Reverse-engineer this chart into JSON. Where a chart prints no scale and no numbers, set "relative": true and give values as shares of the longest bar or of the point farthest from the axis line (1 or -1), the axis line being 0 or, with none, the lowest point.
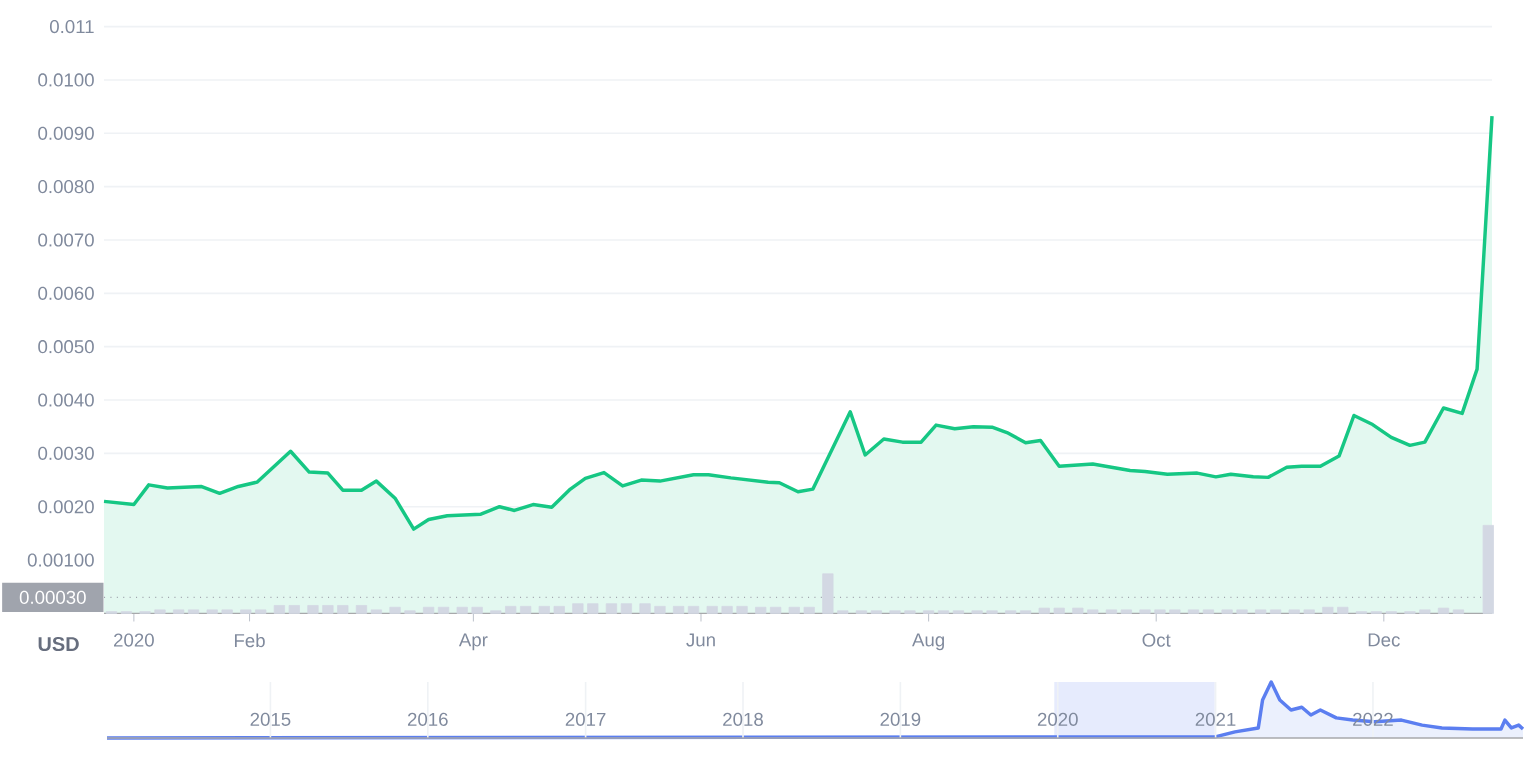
{
  "chart_data": [
    {
      "type": "area",
      "color": "#16c784",
      "grid": "y",
      "x": [
        "2019-12-24",
        "2020-01-01",
        "2020-01-05",
        "2020-01-10",
        "2020-01-19",
        "2020-01-24",
        "2020-01-29",
        "2020-02-03",
        "2020-02-12",
        "2020-02-17",
        "2020-02-22",
        "2020-02-26",
        "2020-03-02",
        "2020-03-06",
        "2020-03-11",
        "2020-03-16",
        "2020-03-20",
        "2020-03-25",
        "2020-04-03",
        "2020-04-08",
        "2020-04-12",
        "2020-04-17",
        "2020-04-22",
        "2020-04-27",
        "2020-05-01",
        "2020-05-06",
        "2020-05-11",
        "2020-05-16",
        "2020-05-21",
        "2020-05-30",
        "2020-06-03",
        "2020-06-09",
        "2020-06-19",
        "2020-06-22",
        "2020-06-27",
        "2020-07-01",
        "2020-07-11",
        "2020-07-15",
        "2020-07-20",
        "2020-07-25",
        "2020-07-30",
        "2020-08-03",
        "2020-08-08",
        "2020-08-13",
        "2020-08-18",
        "2020-08-22",
        "2020-08-27",
        "2020-08-31",
        "2020-09-05",
        "2020-09-14",
        "2020-09-19",
        "2020-09-24",
        "2020-09-28",
        "2020-10-04",
        "2020-10-12",
        "2020-10-17",
        "2020-10-21",
        "2020-10-27",
        "2020-10-31",
        "2020-11-05",
        "2020-11-09",
        "2020-11-14",
        "2020-11-19",
        "2020-11-23",
        "2020-11-28",
        "2020-12-03",
        "2020-12-08",
        "2020-12-12",
        "2020-12-17",
        "2020-12-22",
        "2020-12-26",
        "2020-12-30"
      ],
      "values": [
        0.0021,
        0.00204,
        0.00241,
        0.00235,
        0.00238,
        0.00225,
        0.00238,
        0.00246,
        0.00304,
        0.00265,
        0.00263,
        0.00231,
        0.00231,
        0.00248,
        0.00216,
        0.00158,
        0.00176,
        0.00183,
        0.00186,
        0.002,
        0.00193,
        0.00204,
        0.00199,
        0.00233,
        0.00253,
        0.00264,
        0.00239,
        0.0025,
        0.00248,
        0.0026,
        0.0026,
        0.00254,
        0.00246,
        0.00245,
        0.00228,
        0.00233,
        0.00378,
        0.00297,
        0.00327,
        0.00321,
        0.00321,
        0.00353,
        0.00346,
        0.0035,
        0.00349,
        0.00339,
        0.0032,
        0.00324,
        0.00276,
        0.0028,
        0.00274,
        0.00268,
        0.00266,
        0.00261,
        0.00263,
        0.00256,
        0.00261,
        0.00256,
        0.00255,
        0.00274,
        0.00276,
        0.00276,
        0.00295,
        0.00371,
        0.00354,
        0.0033,
        0.00315,
        0.00321,
        0.00385,
        0.00375,
        0.00458,
        0.00932
      ],
      "xlim": [
        "2019-12-24",
        "2020-12-30"
      ],
      "ylim": [
        0,
        0.011
      ],
      "xticks": [
        {
          "value": "2020-01-01",
          "label": "2020"
        },
        {
          "value": "2020-02-01",
          "label": "Feb"
        },
        {
          "value": "2020-04-01",
          "label": "Apr"
        },
        {
          "value": "2020-06-01",
          "label": "Jun"
        },
        {
          "value": "2020-08-01",
          "label": "Aug"
        },
        {
          "value": "2020-10-01",
          "label": "Oct"
        },
        {
          "value": "2020-12-01",
          "label": "Dec"
        }
      ],
      "yticks": [
        {
          "value": 0.001,
          "label": "0.00100"
        },
        {
          "value": 0.002,
          "label": "0.0020"
        },
        {
          "value": 0.003,
          "label": "0.0030"
        },
        {
          "value": 0.004,
          "label": "0.0040"
        },
        {
          "value": 0.005,
          "label": "0.0050"
        },
        {
          "value": 0.006,
          "label": "0.0060"
        },
        {
          "value": 0.007,
          "label": "0.0070"
        },
        {
          "value": 0.008,
          "label": "0.0080"
        },
        {
          "value": 0.009,
          "label": "0.0090"
        },
        {
          "value": 0.01,
          "label": "0.0100"
        },
        0.011
      ],
      "ref_lines": [
        {
          "axis": "y",
          "value": 0.0003,
          "label": "0.00030",
          "color": "#a0a4ad",
          "line_style": "dotted"
        }
      ],
      "annotations": [
        "USD"
      ]
    },
    {
      "type": "bar",
      "color": "#d3d8e3",
      "relative": true,
      "tick_labels": false,
      "x": [
        "2019-12-26",
        "2019-12-30",
        "2020-01-04",
        "2020-01-08",
        "2020-01-13",
        "2020-01-17",
        "2020-01-22",
        "2020-01-26",
        "2020-01-31",
        "2020-02-04",
        "2020-02-09",
        "2020-02-13",
        "2020-02-18",
        "2020-02-22",
        "2020-02-26",
        "2020-03-02",
        "2020-03-06",
        "2020-03-11",
        "2020-03-15",
        "2020-03-20",
        "2020-03-24",
        "2020-03-29",
        "2020-04-02",
        "2020-04-07",
        "2020-04-11",
        "2020-04-15",
        "2020-04-20",
        "2020-04-24",
        "2020-04-29",
        "2020-05-03",
        "2020-05-08",
        "2020-05-12",
        "2020-05-17",
        "2020-05-21",
        "2020-05-26",
        "2020-05-30",
        "2020-06-04",
        "2020-06-08",
        "2020-06-12",
        "2020-06-17",
        "2020-06-21",
        "2020-06-26",
        "2020-06-30",
        "2020-07-05",
        "2020-07-09",
        "2020-07-14",
        "2020-07-18",
        "2020-07-23",
        "2020-07-27",
        "2020-08-01",
        "2020-08-05",
        "2020-08-09",
        "2020-08-14",
        "2020-08-18",
        "2020-08-23",
        "2020-08-27",
        "2020-09-01",
        "2020-09-05",
        "2020-09-10",
        "2020-09-14",
        "2020-09-19",
        "2020-09-23",
        "2020-09-28",
        "2020-10-02",
        "2020-10-06",
        "2020-10-11",
        "2020-10-15",
        "2020-10-20",
        "2020-10-24",
        "2020-10-29",
        "2020-11-02",
        "2020-11-07",
        "2020-11-11",
        "2020-11-16",
        "2020-11-20",
        "2020-11-25",
        "2020-11-29",
        "2020-12-03",
        "2020-12-08",
        "2020-12-12",
        "2020-12-17",
        "2020-12-21",
        "2020-12-29"
      ],
      "xlim": [
        "2019-12-24",
        "2020-12-30"
      ],
      "xticks": [
        {
          "value": "2020-01-01",
          "label": null
        },
        {
          "value": "2020-02-01",
          "label": null
        },
        {
          "value": "2020-04-01",
          "label": null
        },
        {
          "value": "2020-06-01",
          "label": null
        },
        {
          "value": "2020-08-01",
          "label": null
        },
        {
          "value": "2020-10-01",
          "label": null
        },
        {
          "value": "2020-12-01",
          "label": null
        }
      ],
      "values": [
        0.02,
        0.02,
        0.02,
        0.04,
        0.04,
        0.04,
        0.04,
        0.04,
        0.04,
        0.04,
        0.09,
        0.09,
        0.09,
        0.09,
        0.09,
        0.09,
        0.04,
        0.07,
        0.03,
        0.07,
        0.07,
        0.07,
        0.07,
        0.03,
        0.08,
        0.08,
        0.08,
        0.08,
        0.11,
        0.11,
        0.11,
        0.11,
        0.11,
        0.08,
        0.08,
        0.08,
        0.08,
        0.08,
        0.08,
        0.07,
        0.07,
        0.07,
        0.07,
        0.45,
        0.03,
        0.03,
        0.03,
        0.03,
        0.03,
        0.03,
        0.03,
        0.03,
        0.03,
        0.03,
        0.03,
        0.03,
        0.06,
        0.06,
        0.06,
        0.04,
        0.04,
        0.04,
        0.04,
        0.04,
        0.04,
        0.04,
        0.04,
        0.04,
        0.04,
        0.04,
        0.04,
        0.04,
        0.04,
        0.07,
        0.07,
        0.02,
        0.02,
        0.02,
        0.02,
        0.04,
        0.06,
        0.04,
        1.0
      ]
    },
    {
      "type": "area",
      "color": "#5b7ef0",
      "relative": true,
      "tick_labels": "x",
      "grid": "x",
      "x": [
        "2013-12-18",
        "2020-12-31",
        "2021-02-15",
        "2021-04-10",
        "2021-04-20",
        "2021-05-10",
        "2021-05-30",
        "2021-06-25",
        "2021-07-20",
        "2021-08-10",
        "2021-09-01",
        "2021-10-08",
        "2021-11-15",
        "2022-01-05",
        "2022-03-08",
        "2022-04-25",
        "2022-06-10",
        "2022-08-20",
        "2022-10-25",
        "2022-11-03",
        "2022-11-18",
        "2022-12-05",
        "2022-12-15"
      ],
      "values": [
        0,
        0.02,
        0.11,
        0.18,
        0.68,
        1.0,
        0.68,
        0.5,
        0.55,
        0.41,
        0.5,
        0.36,
        0.32,
        0.29,
        0.32,
        0.23,
        0.18,
        0.16,
        0.16,
        0.32,
        0.18,
        0.23,
        0.16
      ],
      "xlim": [
        "2013-12-18",
        "2022-12-15"
      ],
      "xticks": [
        {
          "value": "2015",
          "label": "2015"
        },
        {
          "value": "2016",
          "label": "2016"
        },
        {
          "value": "2017",
          "label": "2017"
        },
        {
          "value": "2018",
          "label": "2018"
        },
        {
          "value": "2019",
          "label": "2019"
        },
        {
          "value": "2020",
          "label": "2020"
        },
        {
          "value": "2021",
          "label": "2021"
        },
        {
          "value": "2022",
          "label": "2022"
        }
      ],
      "bands": [
        {
          "axis": "x",
          "from": "2019-12-24",
          "to": "2020-12-30",
          "color": "#e6ebfd"
        }
      ]
    }
  ]
}
